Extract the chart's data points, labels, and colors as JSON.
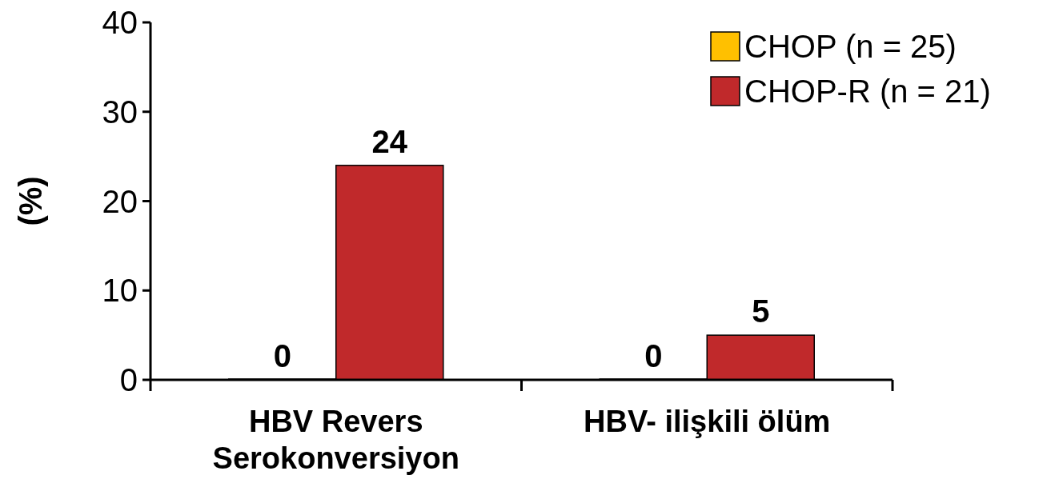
{
  "chart_data": {
    "type": "bar",
    "ylabel": "(%)",
    "categories": [
      "HBV Revers Serokonversiyon",
      "HBV- ilişkili ölüm"
    ],
    "series": [
      {
        "name": "CHOP (n = 25)",
        "color": "#ffc000",
        "values": [
          0,
          0
        ]
      },
      {
        "name": "CHOP-R (n = 21)",
        "color": "#c0292b",
        "values": [
          24,
          5
        ]
      }
    ],
    "ylim": [
      0,
      40
    ],
    "yticks": [
      0,
      10,
      20,
      30,
      40
    ],
    "data_labels": true,
    "legend": "top right",
    "grid": false
  }
}
